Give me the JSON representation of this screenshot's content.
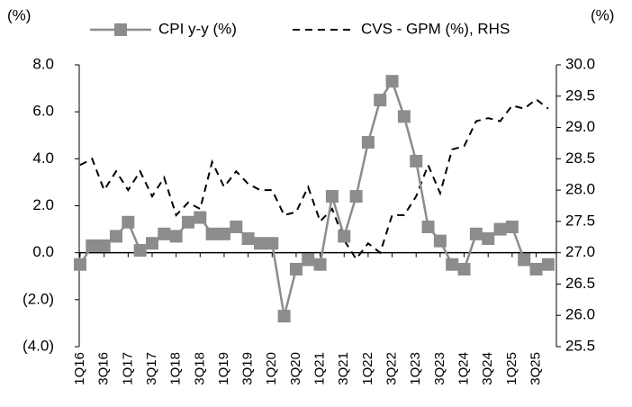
{
  "chart_data": {
    "type": "line",
    "ylabel": "(%)",
    "y2label": "(%)",
    "categories": [
      "1Q16",
      null,
      "3Q16",
      null,
      "1Q17",
      null,
      "3Q17",
      null,
      "1Q18",
      null,
      "3Q18",
      null,
      "1Q19",
      null,
      "3Q19",
      null,
      "1Q20",
      null,
      "3Q20",
      null,
      "1Q21",
      null,
      "3Q21",
      null,
      "1Q22",
      null,
      "3Q22",
      null,
      "1Q23",
      null,
      "3Q23",
      null,
      "1Q24",
      null,
      "3Q24",
      null,
      "1Q25",
      null,
      "3Q25",
      null
    ],
    "series": [
      {
        "name": "CPI y-y (%)",
        "color": "#8c8c8c",
        "marker": "square",
        "axis": "y",
        "values": [
          -0.5,
          0.3,
          0.3,
          0.7,
          1.3,
          0.1,
          0.4,
          0.8,
          0.7,
          1.3,
          1.5,
          0.8,
          0.8,
          1.1,
          0.6,
          0.4,
          0.4,
          -2.7,
          -0.7,
          -0.3,
          -0.5,
          2.4,
          0.7,
          2.4,
          4.7,
          6.5,
          7.3,
          5.8,
          3.9,
          1.1,
          0.5,
          -0.5,
          -0.7,
          0.8,
          0.6,
          1.0,
          1.1,
          -0.3,
          -0.7,
          -0.5
        ]
      },
      {
        "name": "CVS - GPM (%), RHS",
        "color": "#000000",
        "dash": true,
        "axis": "y2",
        "values": [
          28.4,
          28.5,
          28.0,
          28.3,
          28.0,
          28.3,
          27.9,
          28.2,
          27.6,
          27.8,
          27.7,
          28.45,
          28.05,
          28.3,
          28.1,
          28.0,
          28.0,
          27.6,
          27.65,
          28.05,
          27.5,
          27.7,
          27.2,
          26.9,
          27.15,
          27.0,
          27.6,
          27.6,
          27.9,
          28.4,
          27.95,
          28.65,
          28.7,
          29.1,
          29.15,
          29.1,
          29.35,
          29.3,
          29.45,
          29.3
        ]
      }
    ],
    "ylim": [
      -4,
      8
    ],
    "yticks": [
      {
        "value": -4,
        "label": "(4.0)"
      },
      {
        "value": -2,
        "label": "(2.0)"
      },
      {
        "value": 0,
        "label": "0.0"
      },
      {
        "value": 2,
        "label": "2.0"
      },
      {
        "value": 4,
        "label": "4.0"
      },
      {
        "value": 6,
        "label": "6.0"
      },
      {
        "value": 8,
        "label": "8.0"
      }
    ],
    "y2lim": [
      25.5,
      30
    ],
    "y2ticks": [
      {
        "value": 25.5,
        "label": "25.5"
      },
      {
        "value": 26,
        "label": "26.0"
      },
      {
        "value": 26.5,
        "label": "26.5"
      },
      {
        "value": 27,
        "label": "27.0"
      },
      {
        "value": 27.5,
        "label": "27.5"
      },
      {
        "value": 28,
        "label": "28.0"
      },
      {
        "value": 28.5,
        "label": "28.5"
      },
      {
        "value": 29,
        "label": "29.0"
      },
      {
        "value": 29.5,
        "label": "29.5"
      },
      {
        "value": 30,
        "label": "30.0"
      }
    ],
    "legend": "top",
    "grid": false
  }
}
